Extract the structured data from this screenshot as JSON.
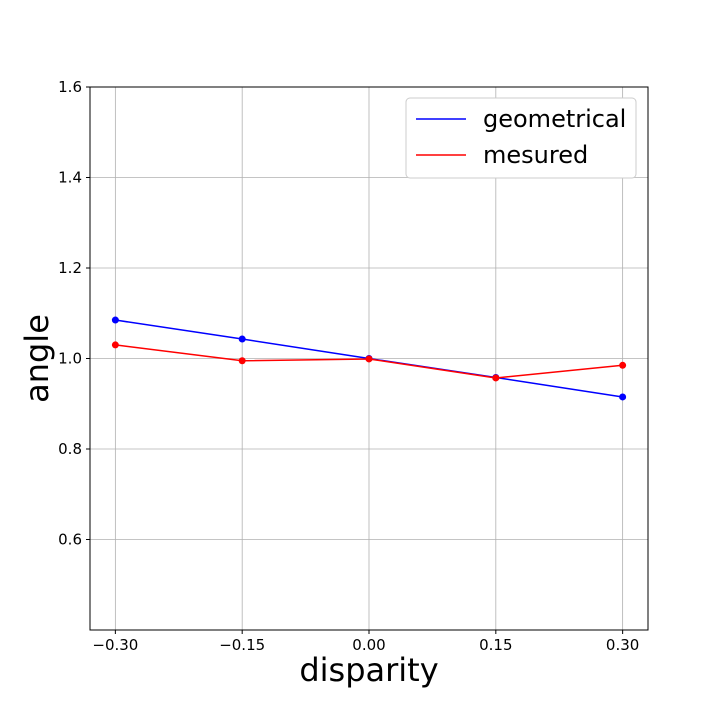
{
  "chart_data": {
    "type": "line",
    "title": "",
    "xlabel": "disparity",
    "ylabel": "angle",
    "xlim": [
      -0.33,
      0.33
    ],
    "ylim": [
      0.4,
      1.6
    ],
    "xticks": [
      -0.3,
      -0.15,
      0.0,
      0.15,
      0.3
    ],
    "xtick_labels": [
      "−0.30",
      "−0.15",
      "0.00",
      "0.15",
      "0.30"
    ],
    "yticks": [
      0.6,
      0.8,
      1.0,
      1.2,
      1.4,
      1.6
    ],
    "ytick_labels": [
      "0.6",
      "0.8",
      "1.0",
      "1.2",
      "1.4",
      "1.6"
    ],
    "grid": true,
    "legend_position": "top-right",
    "x": [
      -0.3,
      -0.15,
      0.0,
      0.15,
      0.3
    ],
    "series": [
      {
        "name": "geometrical",
        "color": "#0000ff",
        "values": [
          1.085,
          1.043,
          1.0,
          0.958,
          0.915
        ]
      },
      {
        "name": "mesured",
        "color": "#ff0000",
        "values": [
          1.03,
          0.995,
          0.999,
          0.957,
          0.985
        ]
      }
    ]
  }
}
